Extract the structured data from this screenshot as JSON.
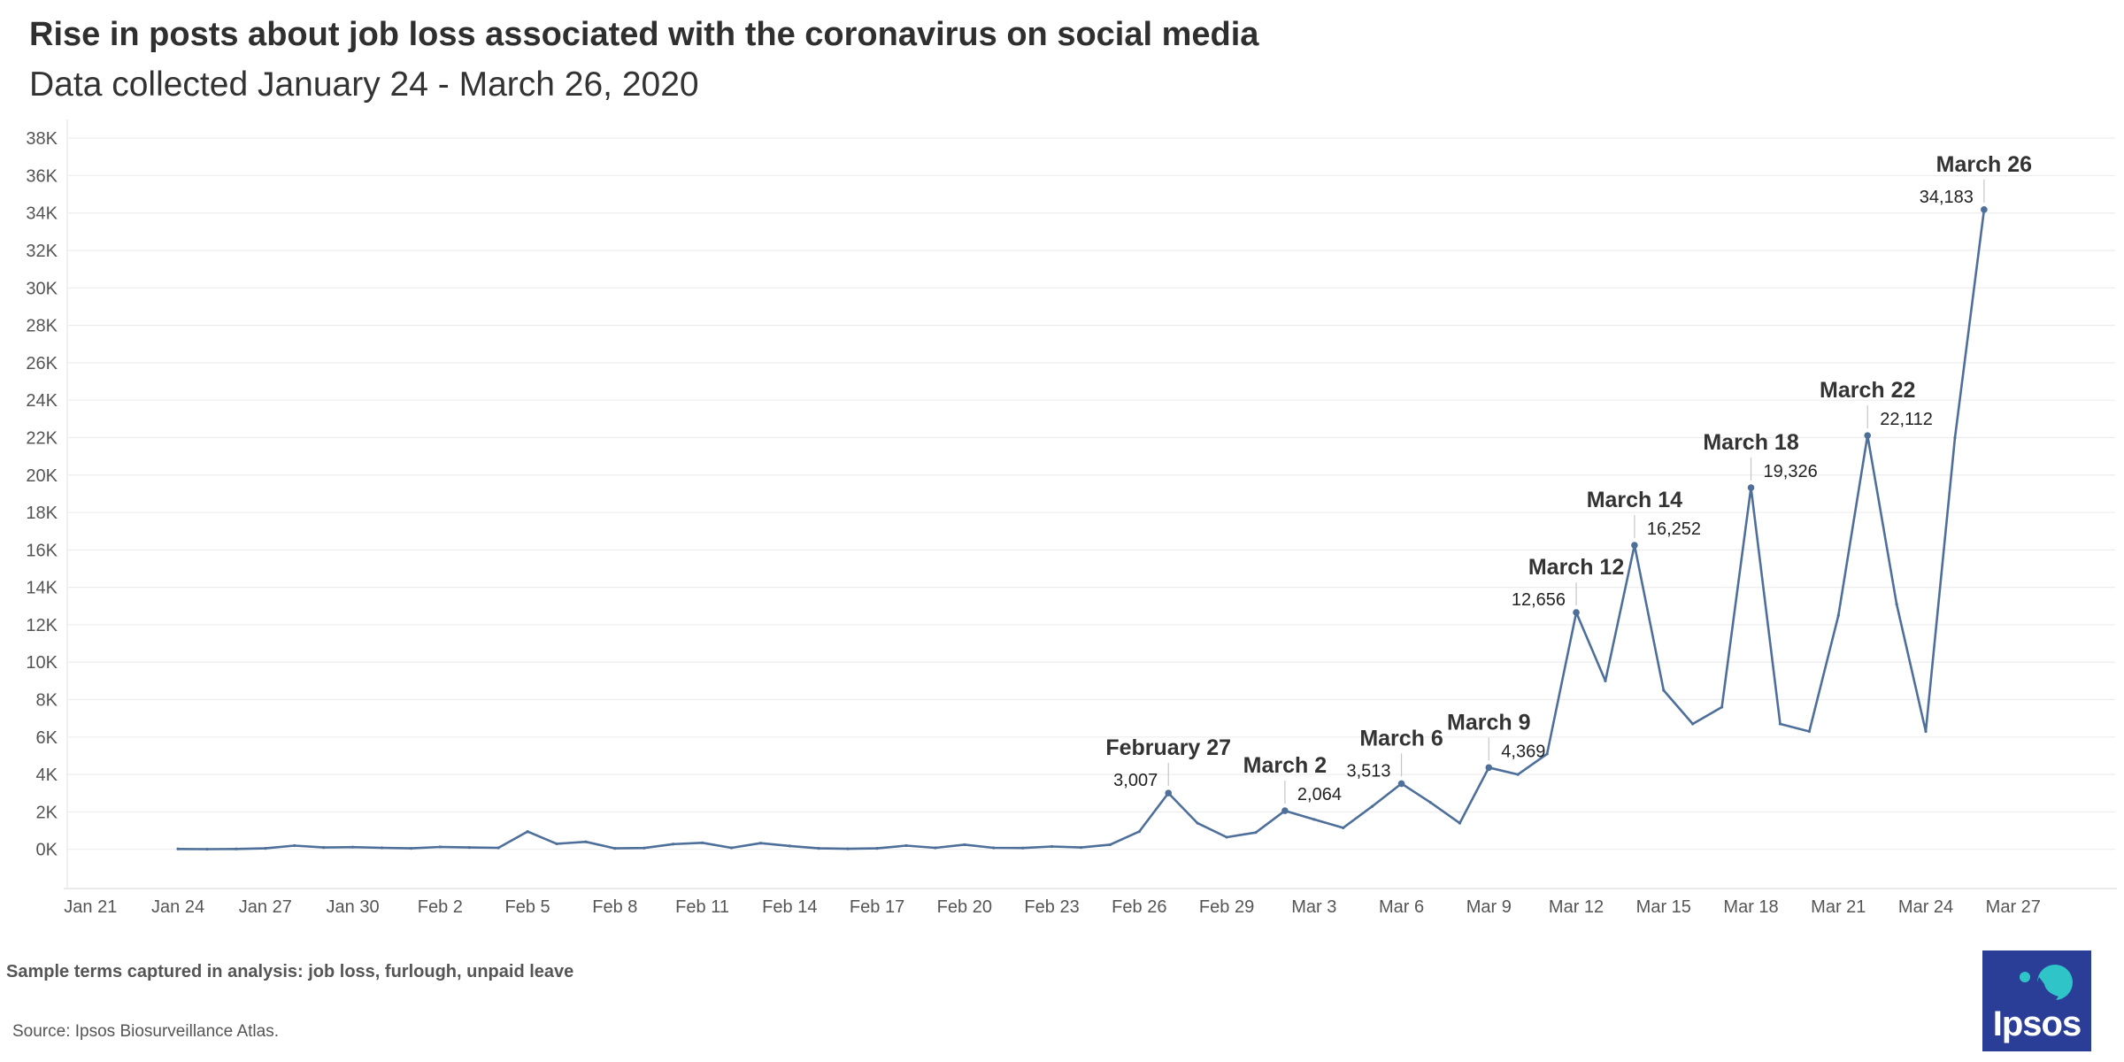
{
  "chart_data": {
    "type": "line",
    "title": "Rise in posts about job loss associated with the coronavirus on social media",
    "subtitle": "Data collected January 24 - March 26, 2020",
    "xlabel": "",
    "ylabel": "",
    "ylim": [
      -2000,
      39000
    ],
    "y_ticks": [
      0,
      2000,
      4000,
      6000,
      8000,
      10000,
      12000,
      14000,
      16000,
      18000,
      20000,
      22000,
      24000,
      26000,
      28000,
      30000,
      32000,
      34000,
      36000,
      38000
    ],
    "y_tick_labels": [
      "0K",
      "2K",
      "4K",
      "6K",
      "8K",
      "10K",
      "12K",
      "14K",
      "16K",
      "18K",
      "20K",
      "22K",
      "24K",
      "26K",
      "28K",
      "30K",
      "32K",
      "34K",
      "36K",
      "38K"
    ],
    "x_range_day_index": [
      -3.8,
      66.5
    ],
    "x_ticks": [
      {
        "day": -3,
        "label": "Jan 21"
      },
      {
        "day": 0,
        "label": "Jan 24"
      },
      {
        "day": 3,
        "label": "Jan 27"
      },
      {
        "day": 6,
        "label": "Jan 30"
      },
      {
        "day": 9,
        "label": "Feb 2"
      },
      {
        "day": 12,
        "label": "Feb 5"
      },
      {
        "day": 15,
        "label": "Feb 8"
      },
      {
        "day": 18,
        "label": "Feb 11"
      },
      {
        "day": 21,
        "label": "Feb 14"
      },
      {
        "day": 24,
        "label": "Feb 17"
      },
      {
        "day": 27,
        "label": "Feb 20"
      },
      {
        "day": 30,
        "label": "Feb 23"
      },
      {
        "day": 33,
        "label": "Feb 26"
      },
      {
        "day": 36,
        "label": "Feb 29"
      },
      {
        "day": 39,
        "label": "Mar 3"
      },
      {
        "day": 42,
        "label": "Mar 6"
      },
      {
        "day": 45,
        "label": "Mar 9"
      },
      {
        "day": 48,
        "label": "Mar 12"
      },
      {
        "day": 51,
        "label": "Mar 15"
      },
      {
        "day": 54,
        "label": "Mar 18"
      },
      {
        "day": 57,
        "label": "Mar 21"
      },
      {
        "day": 60,
        "label": "Mar 24"
      },
      {
        "day": 63,
        "label": "Mar 27"
      }
    ],
    "series": [
      {
        "name": "Posts about job loss",
        "color": "#4e6f9a",
        "start_date": "Jan 24",
        "values": [
          20,
          10,
          20,
          50,
          200,
          100,
          120,
          80,
          50,
          130,
          100,
          80,
          950,
          300,
          400,
          50,
          70,
          280,
          350,
          80,
          330,
          180,
          50,
          30,
          50,
          200,
          80,
          250,
          80,
          70,
          150,
          100,
          250,
          950,
          3007,
          1400,
          650,
          900,
          2064,
          1600,
          1150,
          2300,
          3513,
          2500,
          1400,
          4369,
          4000,
          5100,
          12656,
          9000,
          16252,
          8500,
          6700,
          7600,
          19326,
          6700,
          6300,
          12500,
          22112,
          13100,
          6300,
          22000,
          34183
        ]
      }
    ],
    "annotations": [
      {
        "day": 34,
        "value": 3007,
        "title": "February 27",
        "value_label": "3,007"
      },
      {
        "day": 38,
        "value": 2064,
        "title": "March 2",
        "value_label": "2,064"
      },
      {
        "day": 42,
        "value": 3513,
        "title": "March 6",
        "value_label": "3,513"
      },
      {
        "day": 45,
        "value": 4369,
        "title": "March 9",
        "value_label": "4,369"
      },
      {
        "day": 48,
        "value": 12656,
        "title": "March 12",
        "value_label": "12,656"
      },
      {
        "day": 50,
        "value": 16252,
        "title": "March 14",
        "value_label": "16,252"
      },
      {
        "day": 54,
        "value": 19326,
        "title": "March 18",
        "value_label": "19,326"
      },
      {
        "day": 58,
        "value": 22112,
        "title": "March 22",
        "value_label": "22,112"
      },
      {
        "day": 62,
        "value": 34183,
        "title": "March 26",
        "value_label": "34,183"
      }
    ],
    "grid": true,
    "legend": "none"
  },
  "footer": {
    "note": "Sample terms captured in analysis: job loss, furlough, unpaid leave",
    "source": "Source: Ipsos Biosurveillance Atlas."
  },
  "logo": {
    "text": "Ipsos",
    "background": "#2a3d97",
    "accent": "#2ec4c8"
  }
}
